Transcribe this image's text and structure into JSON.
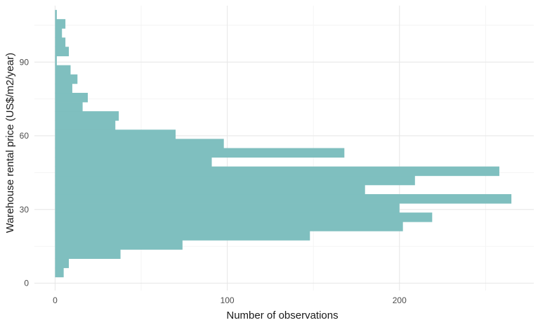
{
  "chart_data": {
    "type": "bar",
    "orientation": "horizontal",
    "xlabel": "Number of observations",
    "ylabel": "Warehouse rental price (US$/m2/year)",
    "xlim": [
      -12,
      278
    ],
    "ylim": [
      -3,
      113
    ],
    "x_ticks": [
      0,
      100,
      200
    ],
    "y_ticks": [
      0,
      30,
      60,
      90
    ],
    "bin_width": 3.75,
    "bins_start": 2.5,
    "counts": [
      5,
      8,
      38,
      74,
      148,
      202,
      219,
      200,
      265,
      180,
      209,
      258,
      91,
      168,
      98,
      70,
      35,
      37,
      16,
      19,
      10,
      13,
      9,
      1,
      8,
      6,
      4,
      6,
      1
    ],
    "colors": {
      "bar": "#7fbfbf"
    },
    "grid": true,
    "legend": "none"
  }
}
